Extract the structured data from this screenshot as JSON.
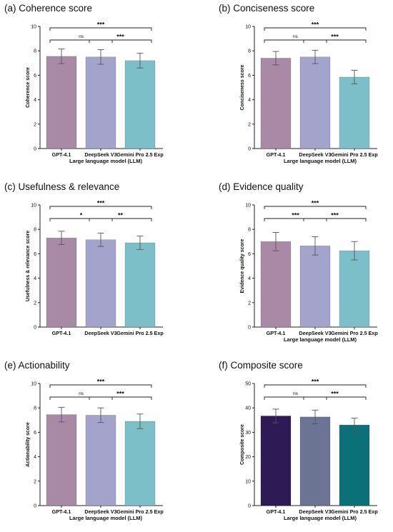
{
  "chart_data": [
    {
      "type": "bar",
      "title": "(a) Coherence score",
      "xlabel": "Large language model (LLM)",
      "ylabel": "Coherence score",
      "categories": [
        "GPT-4.1",
        "DeepSeek V3",
        "Gemini Pro 2.5 Exp"
      ],
      "values": [
        7.55,
        7.5,
        7.2
      ],
      "errors": [
        0.6,
        0.6,
        0.6
      ],
      "ylim": [
        0,
        10
      ],
      "yticks": [
        0,
        2,
        4,
        6,
        8,
        10
      ],
      "colors": [
        "#a98aa6",
        "#a3a3cc",
        "#7cbfc9"
      ],
      "significance": [
        {
          "from": 0,
          "to": 2,
          "label": "***"
        },
        {
          "from": 0,
          "to": 1,
          "label": "ns"
        },
        {
          "from": 1,
          "to": 2,
          "label": "***"
        }
      ]
    },
    {
      "type": "bar",
      "title": "(b) Conciseness score",
      "xlabel": "Large language model (LLM)",
      "ylabel": "Conciseness score",
      "categories": [
        "GPT-4.1",
        "DeepSeek V3",
        "Gemini Pro 2.5 Exp"
      ],
      "values": [
        7.4,
        7.5,
        5.85
      ],
      "errors": [
        0.55,
        0.55,
        0.55
      ],
      "ylim": [
        0,
        10
      ],
      "yticks": [
        0,
        2,
        4,
        6,
        8,
        10
      ],
      "colors": [
        "#a98aa6",
        "#a3a3cc",
        "#7cbfc9"
      ],
      "significance": [
        {
          "from": 0,
          "to": 2,
          "label": "***"
        },
        {
          "from": 0,
          "to": 1,
          "label": "ns"
        },
        {
          "from": 1,
          "to": 2,
          "label": "***"
        }
      ]
    },
    {
      "type": "bar",
      "title": "(c) Usefulness & relevance",
      "xlabel": "",
      "ylabel": "Usefulness & relevance score",
      "categories": [
        "GPT-4.1",
        "DeepSeek V3",
        "Gemini Pro 2.5 Exp"
      ],
      "values": [
        7.3,
        7.15,
        6.9
      ],
      "errors": [
        0.55,
        0.55,
        0.55
      ],
      "ylim": [
        0,
        10
      ],
      "yticks": [
        0,
        2,
        4,
        6,
        8,
        10
      ],
      "colors": [
        "#a98aa6",
        "#a3a3cc",
        "#7cbfc9"
      ],
      "significance": [
        {
          "from": 0,
          "to": 2,
          "label": "***"
        },
        {
          "from": 0,
          "to": 1,
          "label": "*"
        },
        {
          "from": 1,
          "to": 2,
          "label": "**"
        }
      ]
    },
    {
      "type": "bar",
      "title": "(d) Evidence quality",
      "xlabel": "Large language model (LLM)",
      "ylabel": "Evidence quality score",
      "categories": [
        "GPT-4.1",
        "DeepSeek V3",
        "Gemini Pro 2.5 Exp"
      ],
      "values": [
        7.0,
        6.65,
        6.25
      ],
      "errors": [
        0.75,
        0.75,
        0.75
      ],
      "ylim": [
        0,
        10
      ],
      "yticks": [
        0,
        2,
        4,
        6,
        8,
        10
      ],
      "colors": [
        "#a98aa6",
        "#a3a3cc",
        "#7cbfc9"
      ],
      "significance": [
        {
          "from": 0,
          "to": 2,
          "label": "***"
        },
        {
          "from": 0,
          "to": 1,
          "label": "***"
        },
        {
          "from": 1,
          "to": 2,
          "label": "***"
        }
      ]
    },
    {
      "type": "bar",
      "title": "(e) Actionability",
      "xlabel": "Large language model (LLM)",
      "ylabel": "Actionability score",
      "categories": [
        "GPT-4.1",
        "DeepSeek V3",
        "Gemini Pro 2.5 Exp"
      ],
      "values": [
        7.45,
        7.4,
        6.9
      ],
      "errors": [
        0.6,
        0.6,
        0.6
      ],
      "ylim": [
        0,
        10
      ],
      "yticks": [
        0,
        2,
        4,
        6,
        8,
        10
      ],
      "colors": [
        "#a98aa6",
        "#a3a3cc",
        "#7cbfc9"
      ],
      "significance": [
        {
          "from": 0,
          "to": 2,
          "label": "***"
        },
        {
          "from": 0,
          "to": 1,
          "label": "ns"
        },
        {
          "from": 1,
          "to": 2,
          "label": "***"
        }
      ]
    },
    {
      "type": "bar",
      "title": "(f) Composite score",
      "xlabel": "Large language model (LLM)",
      "ylabel": "Composite score",
      "categories": [
        "GPT-4.1",
        "DeepSeek V3",
        "Gemini Pro 2.5 Exp"
      ],
      "values": [
        36.7,
        36.3,
        33.0
      ],
      "errors": [
        2.8,
        2.8,
        2.8
      ],
      "ylim": [
        0,
        50
      ],
      "yticks": [
        0,
        10,
        20,
        30,
        40,
        50
      ],
      "colors": [
        "#2e1a55",
        "#6b7593",
        "#0b7078"
      ],
      "significance": [
        {
          "from": 0,
          "to": 2,
          "label": "***"
        },
        {
          "from": 0,
          "to": 1,
          "label": "ns"
        },
        {
          "from": 1,
          "to": 2,
          "label": "***"
        }
      ]
    }
  ]
}
